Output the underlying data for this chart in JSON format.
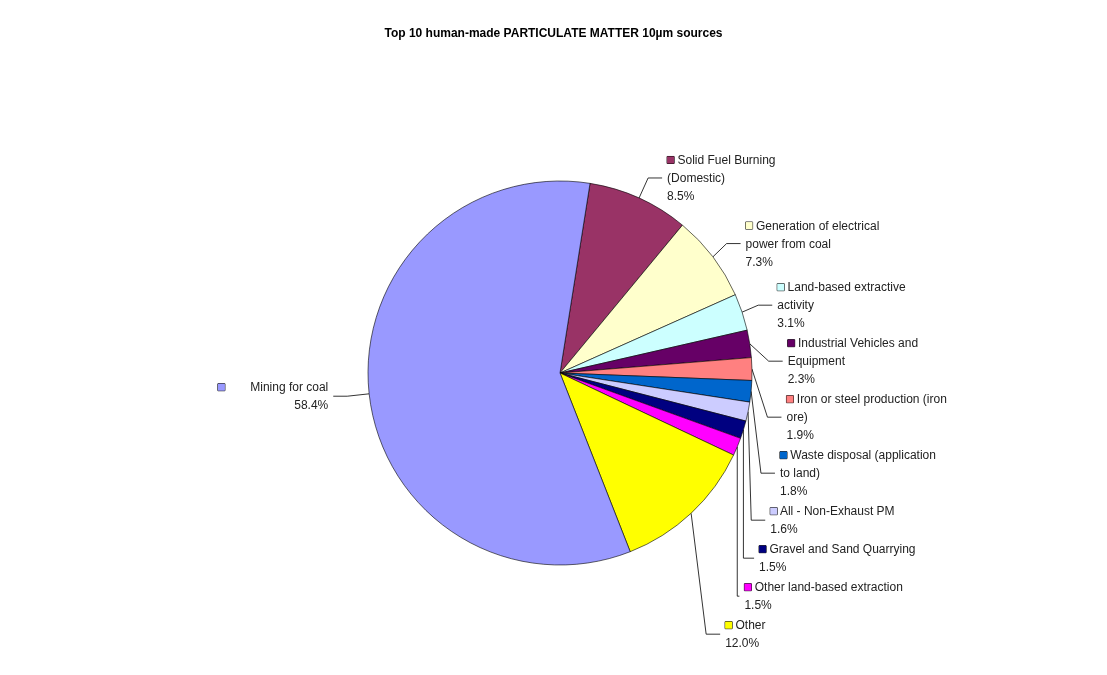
{
  "chart_data": {
    "type": "pie",
    "title": "Top 10 human-made PARTICULATE MATTER 10µm sources",
    "categories": [
      "Solid Fuel Burning (Domestic)",
      "Generation of electrical power from coal",
      "Land-based extractive activity",
      "Industrial Vehicles and Equipment",
      "Iron or steel production (iron ore)",
      "Waste disposal (application to land)",
      "All - Non-Exhaust PM",
      "Gravel and Sand Quarrying",
      "Other land-based extraction",
      "Other",
      "Mining for coal"
    ],
    "values": [
      8.5,
      7.3,
      3.1,
      2.3,
      1.9,
      1.8,
      1.6,
      1.5,
      1.5,
      12.0,
      58.4
    ],
    "value_labels": [
      "8.5%",
      "7.3%",
      "3.1%",
      "2.3%",
      "1.9%",
      "1.8%",
      "1.6%",
      "1.5%",
      "1.5%",
      "12.0%",
      "58.4%"
    ],
    "colors": [
      "#993366",
      "#ffffcc",
      "#ccffff",
      "#660066",
      "#ff8080",
      "#0066cc",
      "#ccccff",
      "#000080",
      "#ff00ff",
      "#ffff00",
      "#9999ff"
    ],
    "legend": "right"
  }
}
